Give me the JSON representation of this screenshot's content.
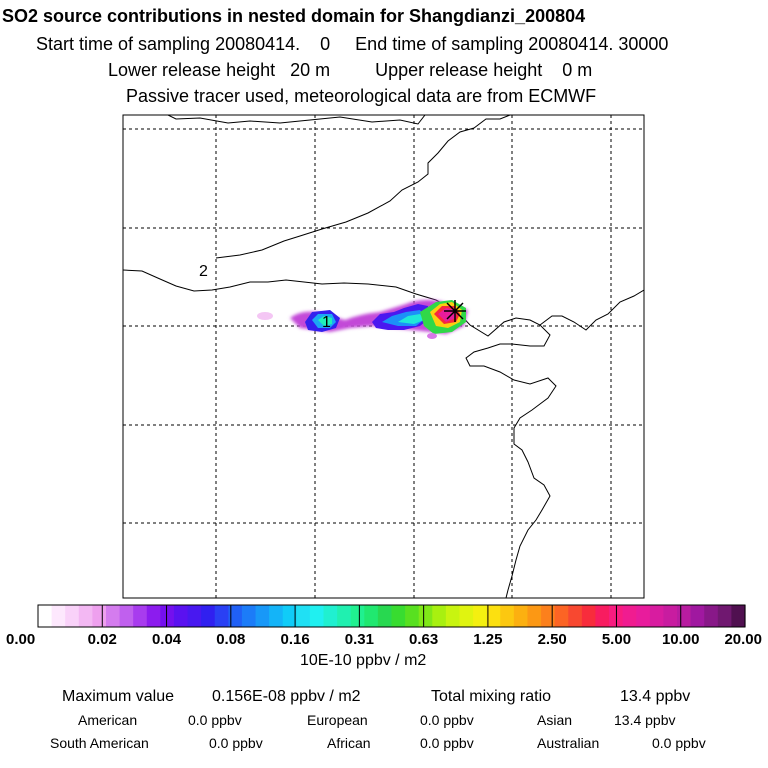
{
  "header": {
    "title": "SO2 source contributions in nested domain for Shangdianzi_200804",
    "sampling_line": "Start time of sampling 20080414.    0     End time of sampling 20080414. 30000",
    "release_line": "Lower release height   20 m         Upper release height    0 m",
    "tracer_line": "Passive tracer used, meteorological data are from ECMWF"
  },
  "map": {
    "contour_labels": [
      "1",
      "2"
    ],
    "receptor_marker": "station-star"
  },
  "colorbar": {
    "tick_labels": [
      "0.00",
      "0.02",
      "0.04",
      "0.08",
      "0.16",
      "0.31",
      "0.63",
      "1.25",
      "2.50",
      "5.00",
      "10.00",
      "20.00"
    ],
    "unit": "10E-10 ppbv / m2",
    "colors": [
      "#ffffff",
      "#fde8fd",
      "#f9d2f9",
      "#f3b8f3",
      "#eea0ee",
      "#d47cee",
      "#c060ee",
      "#a83cee",
      "#8c1cee",
      "#7410ee",
      "#5a12f0",
      "#4818f0",
      "#3020f0",
      "#2a40f4",
      "#2060f6",
      "#1c7cf8",
      "#1898f8",
      "#14b4f8",
      "#10ccf8",
      "#20e0f4",
      "#20f0f0",
      "#20f0d0",
      "#20f0b0",
      "#20f090",
      "#20e870",
      "#28d850",
      "#38dc30",
      "#58e020",
      "#80e818",
      "#a8f010",
      "#c8f410",
      "#e0f410",
      "#f4f010",
      "#fce010",
      "#fcc810",
      "#fcb010",
      "#fc9814",
      "#fc801c",
      "#fc6424",
      "#f84830",
      "#f82c3c",
      "#f81c60",
      "#f81c80",
      "#f01c90",
      "#e81c9c",
      "#d81ca0",
      "#c81ca0",
      "#b81ca0",
      "#a018a0",
      "#881888",
      "#701870",
      "#501050"
    ]
  },
  "summary": {
    "maximum_label": "Maximum value",
    "maximum_value": "0.156E-08 ppbv / m2",
    "total_label": "Total mixing ratio",
    "total_value": "13.4 ppbv"
  },
  "sources": [
    {
      "name": "American",
      "value": "0.0 ppbv"
    },
    {
      "name": "European",
      "value": "0.0 ppbv"
    },
    {
      "name": "Asian",
      "value": "13.4 ppbv"
    },
    {
      "name": "South American",
      "value": "0.0 ppbv"
    },
    {
      "name": "African",
      "value": "0.0 ppbv"
    },
    {
      "name": "Australian",
      "value": "0.0 ppbv"
    }
  ],
  "chart_data": {
    "type": "heatmap",
    "title": "SO2 source contributions in nested domain for Shangdianzi_200804",
    "subtitle": "Passive tracer used, meteorological data are from ECMWF",
    "quantity": "SO2 source contribution",
    "unit": "10E-10 ppbv / m2",
    "color_levels": [
      0.0,
      0.02,
      0.04,
      0.08,
      0.16,
      0.31,
      0.63,
      1.25,
      2.5,
      5.0,
      10.0,
      20.0
    ],
    "maximum": "0.156E-08 ppbv / m2",
    "total_mixing_ratio_ppbv": 13.4,
    "contour_levels": [
      1,
      2
    ],
    "grid": true,
    "plume": "east-west band ending at the receptor station, highest concentrations (5-20) adjacent to the station"
  }
}
